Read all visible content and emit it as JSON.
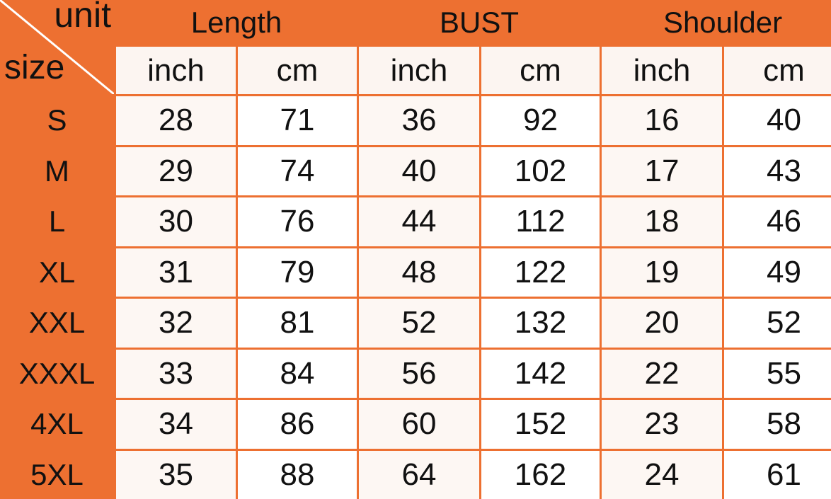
{
  "corner": {
    "unit_label": "unit",
    "size_label": "size"
  },
  "groups": [
    "Length",
    "BUST",
    "Shoulder"
  ],
  "units": [
    "inch",
    "cm",
    "inch",
    "cm",
    "inch",
    "cm"
  ],
  "rows": [
    {
      "size": "S",
      "values": [
        "28",
        "71",
        "36",
        "92",
        "16",
        "40"
      ]
    },
    {
      "size": "M",
      "values": [
        "29",
        "74",
        "40",
        "102",
        "17",
        "43"
      ]
    },
    {
      "size": "L",
      "values": [
        "30",
        "76",
        "44",
        "112",
        "18",
        "46"
      ]
    },
    {
      "size": "XL",
      "values": [
        "31",
        "79",
        "48",
        "122",
        "19",
        "49"
      ]
    },
    {
      "size": "XXL",
      "values": [
        "32",
        "81",
        "52",
        "132",
        "20",
        "52"
      ]
    },
    {
      "size": "XXXL",
      "values": [
        "33",
        "84",
        "56",
        "142",
        "22",
        "55"
      ]
    },
    {
      "size": "4XL",
      "values": [
        "34",
        "86",
        "60",
        "152",
        "23",
        "58"
      ]
    },
    {
      "size": "5XL",
      "values": [
        "35",
        "88",
        "64",
        "162",
        "24",
        "61"
      ]
    }
  ],
  "colors": {
    "header": "#ED7031",
    "cell": "#FFFFFF",
    "text": "#111111"
  }
}
